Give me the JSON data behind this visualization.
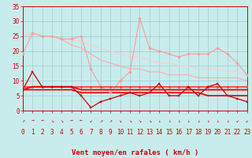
{
  "x": [
    0,
    1,
    2,
    3,
    4,
    5,
    6,
    7,
    8,
    9,
    10,
    11,
    12,
    13,
    14,
    15,
    16,
    17,
    18,
    19,
    20,
    21,
    22,
    23
  ],
  "lines": [
    {
      "y": [
        19,
        26,
        25,
        25,
        24,
        24,
        25,
        14,
        8,
        6,
        10,
        13,
        31,
        21,
        20,
        19,
        18,
        19,
        19,
        19,
        21,
        19,
        16,
        12
      ],
      "color": "#ff9999",
      "lw": 0.8,
      "marker": "D",
      "ms": 1.8,
      "zorder": 3
    },
    {
      "y": [
        25,
        26,
        25,
        25,
        24,
        22,
        21,
        19,
        17,
        16,
        15,
        14,
        14,
        13,
        13,
        12,
        12,
        12,
        11,
        11,
        11,
        11,
        11,
        10
      ],
      "color": "#ffaaaa",
      "lw": 0.8,
      "marker": null,
      "ms": 0,
      "zorder": 2
    },
    {
      "y": [
        25,
        26,
        25,
        25,
        24,
        24,
        23,
        22,
        21,
        20,
        19,
        18,
        18,
        17,
        16,
        16,
        15,
        15,
        14,
        14,
        14,
        13,
        13,
        12
      ],
      "color": "#ffcccc",
      "lw": 0.8,
      "marker": null,
      "ms": 0,
      "zorder": 2
    },
    {
      "y": [
        7,
        13,
        8,
        8,
        8,
        8,
        5,
        1,
        3,
        4,
        5,
        6,
        5,
        6,
        9,
        5,
        5,
        8,
        5,
        8,
        9,
        5,
        4,
        3
      ],
      "color": "#cc0000",
      "lw": 0.9,
      "marker": "s",
      "ms": 1.8,
      "zorder": 4
    },
    {
      "y": [
        8,
        8,
        8,
        8,
        8,
        8,
        8,
        8,
        8,
        8,
        8,
        8,
        8,
        8,
        8,
        8,
        8,
        8,
        8,
        8,
        8,
        8,
        8,
        8
      ],
      "color": "#ff3333",
      "lw": 1.2,
      "marker": "D",
      "ms": 1.5,
      "zorder": 3
    },
    {
      "y": [
        7,
        8,
        8,
        8,
        8,
        8,
        7,
        7,
        7,
        7,
        7,
        7,
        7,
        7,
        7,
        7,
        7,
        7,
        7,
        7,
        7,
        7,
        7,
        7
      ],
      "color": "#ff0000",
      "lw": 1.4,
      "marker": null,
      "ms": 0,
      "zorder": 3
    },
    {
      "y": [
        7,
        7,
        7,
        7,
        7,
        7,
        6,
        6,
        6,
        6,
        6,
        6,
        6,
        6,
        6,
        6,
        6,
        6,
        6,
        5,
        5,
        5,
        5,
        5
      ],
      "color": "#dd0000",
      "lw": 1.2,
      "marker": null,
      "ms": 0,
      "zorder": 2
    }
  ],
  "arrows": [
    "↗",
    "→",
    "→",
    "↘",
    "↘",
    "→",
    "←",
    "↙",
    "↗",
    "↗",
    "↘",
    "↘",
    "↘",
    "↘",
    "↓",
    "↓",
    "↓",
    "↓",
    "↓",
    "↓",
    "↓",
    "↓",
    "↙",
    "↙"
  ],
  "xlabel": "Vent moyen/en rafales ( km/h )",
  "xlim": [
    0,
    23
  ],
  "ylim": [
    0,
    35
  ],
  "yticks": [
    0,
    5,
    10,
    15,
    20,
    25,
    30,
    35
  ],
  "xticks": [
    0,
    1,
    2,
    3,
    4,
    5,
    6,
    7,
    8,
    9,
    10,
    11,
    12,
    13,
    14,
    15,
    16,
    17,
    18,
    19,
    20,
    21,
    22,
    23
  ],
  "bg_color": "#c8ecec",
  "grid_color": "#a0cccc",
  "axis_color": "#cc0000",
  "text_color": "#cc0000",
  "arrow_fontsize": 4.5,
  "xlabel_fontsize": 6.5,
  "tick_fontsize": 5.5
}
